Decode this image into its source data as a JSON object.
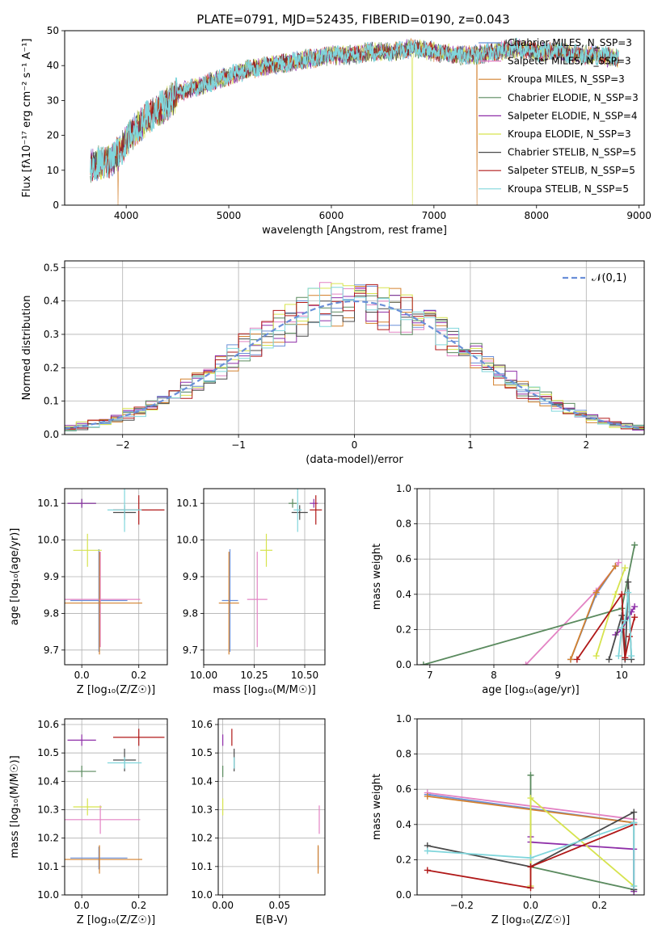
{
  "figure_title": "PLATE=0791, MJD=52435, FIBERID=0190, z=0.043",
  "colors": {
    "Chabrier MILES": "#6a8fd8",
    "Salpeter MILES": "#e383c4",
    "Kroupa MILES": "#d3812e",
    "Chabrier ELODIE": "#5a8a5e",
    "Salpeter ELODIE": "#8e2ea8",
    "Kroupa ELODIE": "#d6e34e",
    "Chabrier STELIB": "#4a4a4a",
    "Salpeter STELIB": "#b01818",
    "Kroupa STELIB": "#80d6dc"
  },
  "chart_data": [
    {
      "id": "spectrum",
      "type": "line",
      "title": "PLATE=0791, MJD=52435, FIBERID=0190, z=0.043",
      "xlabel": "wavelength [Angstrom, rest frame]",
      "ylabel": "Flux [fλ10⁻¹⁷ erg cm⁻² s⁻¹ A⁻¹]",
      "xlim": [
        3400,
        9050
      ],
      "ylim": [
        0,
        50
      ],
      "xticks": [
        4000,
        5000,
        6000,
        7000,
        8000,
        9000
      ],
      "yticks": [
        0,
        10,
        20,
        30,
        40,
        50
      ],
      "grid": false,
      "legend_position": "top-right",
      "continuum": {
        "x": [
          3650,
          3700,
          3800,
          3900,
          4000,
          4100,
          4200,
          4300,
          4400,
          4500,
          4600,
          4800,
          5000,
          5200,
          5400,
          5600,
          5800,
          6000,
          6200,
          6400,
          6600,
          6800,
          7000,
          7200,
          7400,
          7600,
          7800,
          8000,
          8200,
          8400,
          8600,
          8800
        ],
        "y": [
          11,
          12,
          12,
          14,
          18,
          22,
          25,
          27,
          29,
          32,
          33,
          35,
          37,
          39,
          40,
          41,
          42,
          43,
          43,
          44,
          44,
          45,
          44,
          43,
          43,
          44,
          45,
          44,
          44,
          43,
          43,
          42
        ]
      },
      "dropouts": [
        {
          "x": 3920,
          "y": 0
        },
        {
          "x": 6790,
          "y": 0
        },
        {
          "x": 7420,
          "y": 0
        }
      ],
      "series": [
        {
          "name": "Chabrier MILES, N_SSP=3"
        },
        {
          "name": "Salpeter MILES, N_SSP=3"
        },
        {
          "name": "Kroupa MILES, N_SSP=3"
        },
        {
          "name": "Chabrier ELODIE, N_SSP=3"
        },
        {
          "name": "Salpeter ELODIE, N_SSP=4"
        },
        {
          "name": "Kroupa ELODIE, N_SSP=3"
        },
        {
          "name": "Chabrier STELIB, N_SSP=5"
        },
        {
          "name": "Salpeter STELIB, N_SSP=5"
        },
        {
          "name": "Kroupa STELIB, N_SSP=5"
        }
      ]
    },
    {
      "id": "residuals",
      "type": "histogram",
      "xlabel": "(data-model)/error",
      "ylabel": "Normed distribution",
      "xlim": [
        -2.5,
        2.5
      ],
      "ylim": [
        0,
        0.52
      ],
      "xticks": [
        -2,
        -1,
        0,
        1,
        2
      ],
      "yticks": [
        0.0,
        0.1,
        0.2,
        0.3,
        0.4,
        0.5
      ],
      "grid": true,
      "legend_position": "top-right",
      "reference_curve": {
        "name": "𝒩(0,1)",
        "mu": 0,
        "sigma": 1,
        "color": "#6a8fd8"
      },
      "bin_width": 0.1
    },
    {
      "id": "age_vs_Z",
      "type": "scatter-errorbar",
      "xlabel": "Z [log₁₀(Z/Z☉)]",
      "ylabel": "age  [log₁₀(age/yr)]",
      "xlim": [
        -0.06,
        0.3
      ],
      "ylim": [
        9.66,
        10.14
      ],
      "xticks": [
        0.0,
        0.2
      ],
      "yticks": [
        9.7,
        9.8,
        9.9,
        10.0,
        10.1
      ],
      "grid": true,
      "points": [
        {
          "series": "Chabrier MILES",
          "x": 0.06,
          "y": 9.835,
          "xerr": 0.1,
          "yerr": 0.14
        },
        {
          "series": "Salpeter MILES",
          "x": 0.065,
          "y": 9.838,
          "xerr": 0.14,
          "yerr": 0.13
        },
        {
          "series": "Kroupa MILES",
          "x": 0.062,
          "y": 9.828,
          "xerr": 0.15,
          "yerr": 0.14
        },
        {
          "series": "Chabrier ELODIE",
          "x": 0.0,
          "y": 10.1,
          "xerr": 0.05,
          "yerr": 0.012
        },
        {
          "series": "Salpeter ELODIE",
          "x": 0.0,
          "y": 10.1,
          "xerr": 0.05,
          "yerr": 0.012
        },
        {
          "series": "Kroupa ELODIE",
          "x": 0.02,
          "y": 9.972,
          "xerr": 0.05,
          "yerr": 0.045
        },
        {
          "series": "Chabrier STELIB",
          "x": 0.15,
          "y": 10.075,
          "xerr": 0.04,
          "yerr": 0.02
        },
        {
          "series": "Salpeter STELIB",
          "x": 0.2,
          "y": 10.082,
          "xerr": 0.09,
          "yerr": 0.04
        },
        {
          "series": "Kroupa STELIB",
          "x": 0.15,
          "y": 10.082,
          "xerr": 0.06,
          "yerr": 0.06
        }
      ]
    },
    {
      "id": "age_vs_mass",
      "type": "scatter-errorbar",
      "xlabel": "mass [log₁₀(M/M☉)]",
      "ylabel": "",
      "xlim": [
        10.0,
        10.6
      ],
      "ylim": [
        9.66,
        10.14
      ],
      "xticks": [
        10.0,
        10.25,
        10.5
      ],
      "xticklabels": [
        "10.00",
        "10.25",
        "10.50"
      ],
      "yticks": [
        9.7,
        9.8,
        9.9,
        10.0,
        10.1
      ],
      "grid": true,
      "points": [
        {
          "series": "Chabrier MILES",
          "x": 10.13,
          "y": 9.835,
          "xerr": 0.04,
          "yerr": 0.14
        },
        {
          "series": "Salpeter MILES",
          "x": 10.265,
          "y": 9.838,
          "xerr": 0.05,
          "yerr": 0.13
        },
        {
          "series": "Kroupa MILES",
          "x": 10.125,
          "y": 9.828,
          "xerr": 0.05,
          "yerr": 0.14
        },
        {
          "series": "Chabrier ELODIE",
          "x": 10.44,
          "y": 10.1,
          "xerr": 0.02,
          "yerr": 0.012
        },
        {
          "series": "Salpeter ELODIE",
          "x": 10.545,
          "y": 10.1,
          "xerr": 0.02,
          "yerr": 0.012
        },
        {
          "series": "Kroupa ELODIE",
          "x": 10.31,
          "y": 9.972,
          "xerr": 0.03,
          "yerr": 0.045
        },
        {
          "series": "Chabrier STELIB",
          "x": 10.475,
          "y": 10.075,
          "xerr": 0.04,
          "yerr": 0.02
        },
        {
          "series": "Salpeter STELIB",
          "x": 10.555,
          "y": 10.082,
          "xerr": 0.03,
          "yerr": 0.04
        },
        {
          "series": "Kroupa STELIB",
          "x": 10.465,
          "y": 10.082,
          "xerr": 0.02,
          "yerr": 0.06
        }
      ]
    },
    {
      "id": "weight_vs_age",
      "type": "line",
      "xlabel": "age  [log₁₀(age/yr)]",
      "ylabel": "mass weight",
      "xlim": [
        6.8,
        10.35
      ],
      "ylim": [
        0,
        1.0
      ],
      "xticks": [
        7,
        8,
        9,
        10
      ],
      "yticks": [
        0.0,
        0.2,
        0.4,
        0.6,
        0.8,
        1.0
      ],
      "grid": true,
      "series": [
        {
          "name": "Chabrier MILES",
          "x": [
            9.2,
            9.6,
            9.9
          ],
          "y": [
            0.03,
            0.4,
            0.56
          ]
        },
        {
          "name": "Salpeter MILES",
          "x": [
            8.5,
            9.6,
            9.95
          ],
          "y": [
            0.0,
            0.42,
            0.58
          ]
        },
        {
          "name": "Kroupa MILES",
          "x": [
            9.2,
            9.6,
            9.9
          ],
          "y": [
            0.03,
            0.41,
            0.56
          ]
        },
        {
          "name": "Chabrier ELODIE",
          "x": [
            6.9,
            10.0,
            10.2
          ],
          "y": [
            0.0,
            0.32,
            0.68
          ]
        },
        {
          "name": "Salpeter ELODIE",
          "x": [
            9.9,
            10.0,
            10.15,
            10.2
          ],
          "y": [
            0.17,
            0.2,
            0.3,
            0.33
          ]
        },
        {
          "name": "Kroupa ELODIE",
          "x": [
            9.6,
            9.9,
            10.05
          ],
          "y": [
            0.05,
            0.4,
            0.55
          ]
        },
        {
          "name": "Chabrier STELIB",
          "x": [
            9.8,
            10.0,
            10.05,
            10.1,
            10.15
          ],
          "y": [
            0.03,
            0.28,
            0.03,
            0.47,
            0.03
          ]
        },
        {
          "name": "Salpeter STELIB",
          "x": [
            9.3,
            10.0,
            10.05,
            10.12,
            10.2
          ],
          "y": [
            0.03,
            0.4,
            0.04,
            0.16,
            0.27
          ]
        },
        {
          "name": "Kroupa STELIB",
          "x": [
            9.95,
            10.0,
            10.05,
            10.1,
            10.15
          ],
          "y": [
            0.05,
            0.21,
            0.25,
            0.41,
            0.05
          ]
        }
      ]
    },
    {
      "id": "mass_vs_Z",
      "type": "scatter-errorbar",
      "xlabel": "Z [log₁₀(Z/Z☉)]",
      "ylabel": "mass [log₁₀(M/M☉)]",
      "xlim": [
        -0.06,
        0.3
      ],
      "ylim": [
        10.0,
        10.62
      ],
      "xticks": [
        0.0,
        0.2
      ],
      "yticks": [
        10.0,
        10.1,
        10.2,
        10.3,
        10.4,
        10.5,
        10.6
      ],
      "grid": true,
      "points": [
        {
          "series": "Chabrier MILES",
          "x": 0.06,
          "y": 10.13,
          "xerr": 0.1,
          "yerr": 0.04
        },
        {
          "series": "Salpeter MILES",
          "x": 0.065,
          "y": 10.265,
          "xerr": 0.14,
          "yerr": 0.05
        },
        {
          "series": "Kroupa MILES",
          "x": 0.062,
          "y": 10.125,
          "xerr": 0.15,
          "yerr": 0.05
        },
        {
          "series": "Chabrier ELODIE",
          "x": 0.0,
          "y": 10.435,
          "xerr": 0.05,
          "yerr": 0.02
        },
        {
          "series": "Salpeter ELODIE",
          "x": 0.0,
          "y": 10.545,
          "xerr": 0.05,
          "yerr": 0.02
        },
        {
          "series": "Kroupa ELODIE",
          "x": 0.02,
          "y": 10.31,
          "xerr": 0.05,
          "yerr": 0.03
        },
        {
          "series": "Chabrier STELIB",
          "x": 0.15,
          "y": 10.475,
          "xerr": 0.04,
          "yerr": 0.04
        },
        {
          "series": "Salpeter STELIB",
          "x": 0.2,
          "y": 10.555,
          "xerr": 0.09,
          "yerr": 0.03
        },
        {
          "series": "Kroupa STELIB",
          "x": 0.15,
          "y": 10.465,
          "xerr": 0.06,
          "yerr": 0.02
        }
      ]
    },
    {
      "id": "mass_vs_ebv",
      "type": "scatter-errorbar",
      "xlabel": "E(B-V)",
      "ylabel": "",
      "xlim": [
        -0.004,
        0.09
      ],
      "ylim": [
        10.0,
        10.62
      ],
      "xticks": [
        0.0,
        0.05
      ],
      "xticklabels": [
        "0.00",
        "0.05"
      ],
      "yticks": [
        10.0,
        10.1,
        10.2,
        10.3,
        10.4,
        10.5,
        10.6
      ],
      "grid": true,
      "points": [
        {
          "series": "Chabrier MILES",
          "x": 0.084,
          "y": 10.13,
          "xerr": 0.0,
          "yerr": 0.04
        },
        {
          "series": "Salpeter MILES",
          "x": 0.085,
          "y": 10.265,
          "xerr": 0.0,
          "yerr": 0.05
        },
        {
          "series": "Kroupa MILES",
          "x": 0.084,
          "y": 10.125,
          "xerr": 0.0,
          "yerr": 0.05
        },
        {
          "series": "Chabrier ELODIE",
          "x": 0.0,
          "y": 10.435,
          "xerr": 0.0,
          "yerr": 0.02
        },
        {
          "series": "Salpeter ELODIE",
          "x": 0.0,
          "y": 10.545,
          "xerr": 0.0,
          "yerr": 0.02
        },
        {
          "series": "Kroupa ELODIE",
          "x": 0.0,
          "y": 10.31,
          "xerr": 0.0,
          "yerr": 0.03
        },
        {
          "series": "Chabrier STELIB",
          "x": 0.01,
          "y": 10.475,
          "xerr": 0.0,
          "yerr": 0.04
        },
        {
          "series": "Salpeter STELIB",
          "x": 0.008,
          "y": 10.555,
          "xerr": 0.0,
          "yerr": 0.03
        },
        {
          "series": "Kroupa STELIB",
          "x": 0.01,
          "y": 10.465,
          "xerr": 0.0,
          "yerr": 0.02
        }
      ]
    },
    {
      "id": "weight_vs_Z",
      "type": "line",
      "xlabel": "Z [log₁₀(Z/Z☉)]",
      "ylabel": "mass weight",
      "xlim": [
        -0.33,
        0.33
      ],
      "ylim": [
        0,
        1.0
      ],
      "xticks": [
        -0.2,
        0.0,
        0.2
      ],
      "yticks": [
        0.0,
        0.2,
        0.4,
        0.6,
        0.8,
        1.0
      ],
      "grid": true,
      "series": [
        {
          "name": "Chabrier MILES",
          "x": [
            -0.3,
            0.3
          ],
          "y": [
            0.57,
            0.41
          ]
        },
        {
          "name": "Salpeter MILES",
          "x": [
            -0.3,
            0.3
          ],
          "y": [
            0.58,
            0.43
          ]
        },
        {
          "name": "Kroupa MILES",
          "x": [
            -0.3,
            0.3
          ],
          "y": [
            0.56,
            0.41
          ]
        },
        {
          "name": "Chabrier ELODIE",
          "x": [
            0.0,
            0.0,
            0.0,
            0.3
          ],
          "y": [
            0.68,
            0.16,
            0.16,
            0.03
          ]
        },
        {
          "name": "Salpeter ELODIE",
          "x": [
            0.0,
            0.0,
            0.3,
            0.3
          ],
          "y": [
            0.33,
            0.3,
            0.26,
            0.02
          ]
        },
        {
          "name": "Kroupa ELODIE",
          "x": [
            0.0,
            0.0,
            0.3
          ],
          "y": [
            0.05,
            0.55,
            0.05
          ]
        },
        {
          "name": "Chabrier STELIB",
          "x": [
            -0.3,
            0.0,
            0.3,
            0.3
          ],
          "y": [
            0.28,
            0.16,
            0.47,
            0.03
          ]
        },
        {
          "name": "Salpeter STELIB",
          "x": [
            -0.3,
            0.0,
            0.0,
            0.3
          ],
          "y": [
            0.14,
            0.04,
            0.16,
            0.4
          ]
        },
        {
          "name": "Kroupa STELIB",
          "x": [
            -0.3,
            0.0,
            0.3,
            0.3
          ],
          "y": [
            0.25,
            0.21,
            0.41,
            0.05
          ]
        }
      ]
    }
  ]
}
